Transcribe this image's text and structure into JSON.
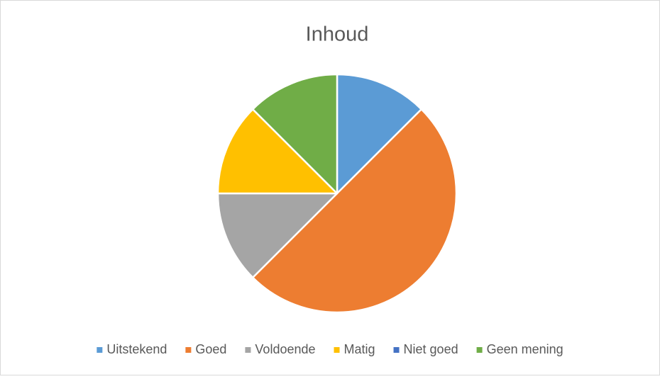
{
  "chart_data": {
    "type": "pie",
    "title": "Inhoud",
    "categories": [
      "Uitstekend",
      "Goed",
      "Voldoende",
      "Matig",
      "Niet goed",
      "Geen mening"
    ],
    "values": [
      12.5,
      50,
      12.5,
      12.5,
      0,
      12.5
    ],
    "colors": [
      "#5b9bd5",
      "#ed7d31",
      "#a5a5a5",
      "#ffc000",
      "#4472c4",
      "#70ad47"
    ],
    "legend": "bottom"
  }
}
